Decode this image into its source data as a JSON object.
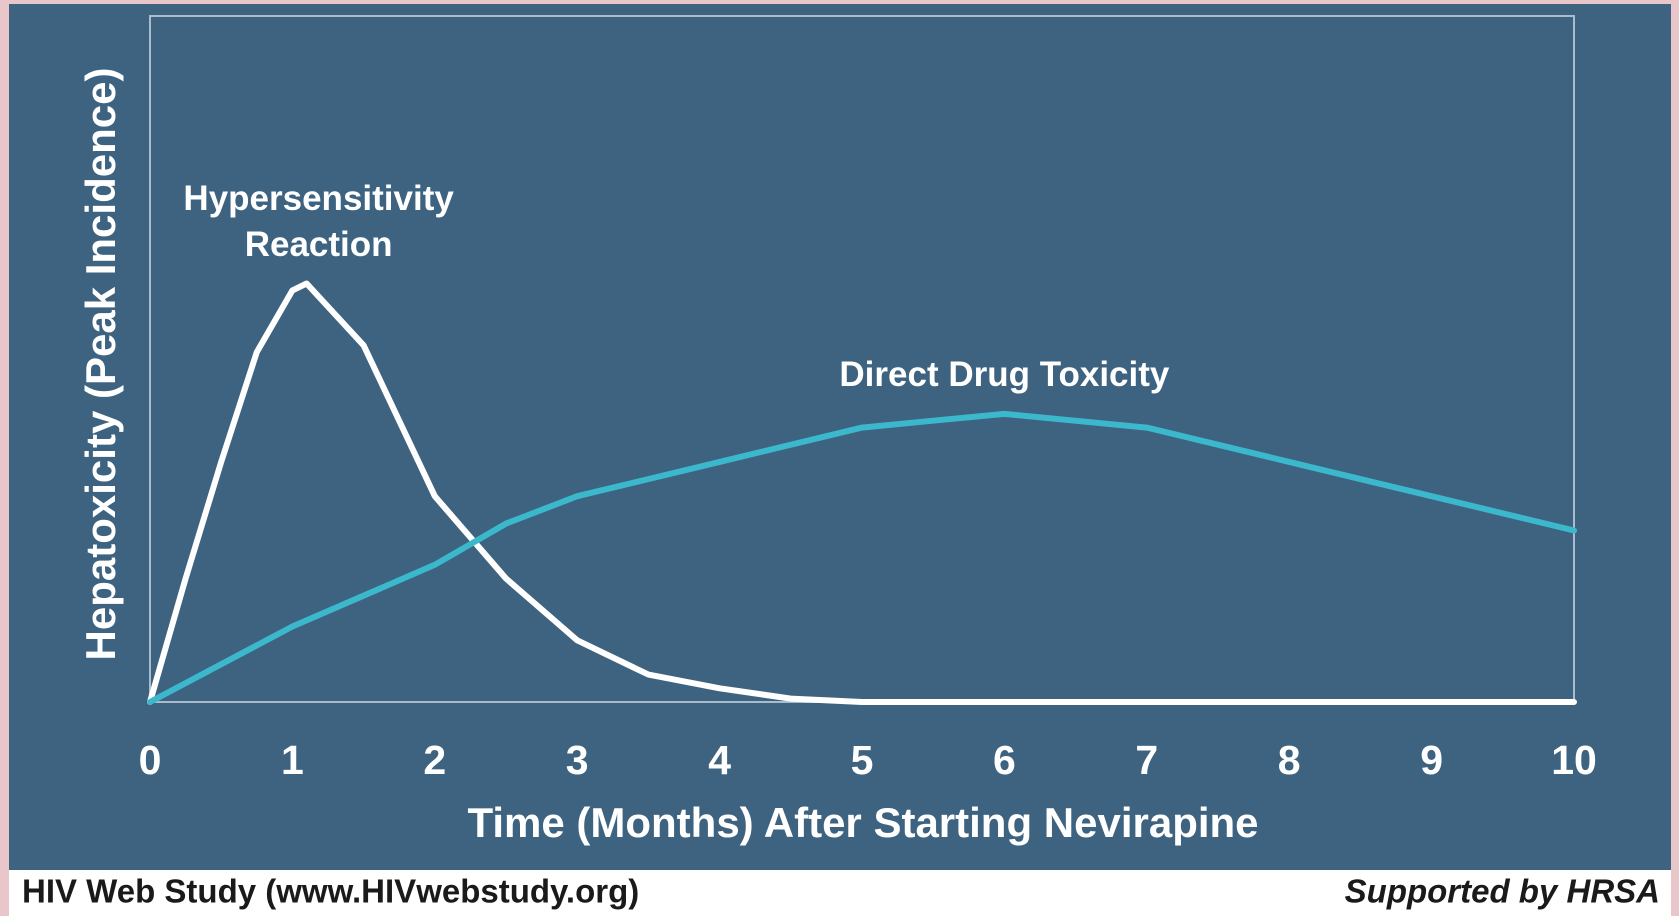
{
  "chart_data": {
    "type": "line",
    "xlabel": "Time (Months) After Starting Nevirapine",
    "ylabel": "Hepatoxicity (Peak Incidence)",
    "xlim": [
      0,
      10
    ],
    "xticks": [
      0,
      1,
      2,
      3,
      4,
      5,
      6,
      7,
      8,
      9,
      10
    ],
    "ylim": [
      0,
      100
    ],
    "series": [
      {
        "name": "Hypersensitivity Reaction",
        "color": "#ffffff",
        "x": [
          0,
          0.25,
          0.5,
          0.75,
          1,
          1.1,
          1.5,
          2,
          2.5,
          3,
          3.5,
          4,
          4.5,
          5,
          10
        ],
        "values": [
          0,
          18,
          35,
          51,
          60,
          61,
          52,
          30,
          18,
          9,
          4,
          2,
          0.5,
          0,
          0
        ]
      },
      {
        "name": "Direct Drug Toxicity",
        "color": "#3bb8cc",
        "x": [
          0,
          1,
          2,
          2.5,
          3,
          4,
          5,
          5.5,
          6,
          7,
          8,
          9,
          10
        ],
        "values": [
          0,
          11,
          20,
          26,
          30,
          35,
          40,
          41,
          42,
          40,
          35,
          30,
          25
        ]
      }
    ],
    "footer_left": "HIV Web Study  (www.HIVwebstudy.org)",
    "footer_right": "Supported by HRSA"
  }
}
